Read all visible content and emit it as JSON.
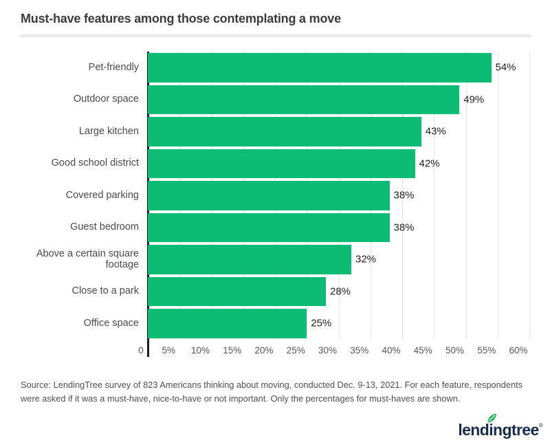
{
  "header": {
    "title": "Must-have features among those contemplating a move"
  },
  "chart_data": {
    "type": "bar",
    "orientation": "horizontal",
    "title": "Must-have features among those contemplating a move",
    "categories": [
      "Pet-friendly",
      "Outdoor space",
      "Large kitchen",
      "Good school district",
      "Covered parking",
      "Guest bedroom",
      "Above a certain square footage",
      "Close to a park",
      "Office space"
    ],
    "values": [
      54,
      49,
      43,
      42,
      38,
      38,
      32,
      28,
      25
    ],
    "value_labels": [
      "54%",
      "49%",
      "43%",
      "42%",
      "38%",
      "38%",
      "32%",
      "28%",
      "25%"
    ],
    "xlabel": "",
    "ylabel": "",
    "xlim": [
      0,
      60
    ],
    "x_ticks": [
      "0",
      "5%",
      "10%",
      "15%",
      "20%",
      "25%",
      "30%",
      "35%",
      "40%",
      "45%",
      "50%",
      "55%",
      "60%"
    ],
    "grid": true,
    "legend": false,
    "bar_color": "#0dbc74",
    "grid_color": "#e3e3e3",
    "axis_color": "#1c1c1c"
  },
  "footer": {
    "source": "Source: LendingTree survey of 823 Americans thinking about moving, conducted Dec. 9-13, 2021. For each feature, respondents were asked if it was a must-have, nice-to-have or not important. Only the percentages for must-haves are shown.",
    "logo_text": "lendingtree",
    "logo_mark": "®",
    "logo_color": "#1b2b4b",
    "leaf_color": "#2eb35a"
  }
}
